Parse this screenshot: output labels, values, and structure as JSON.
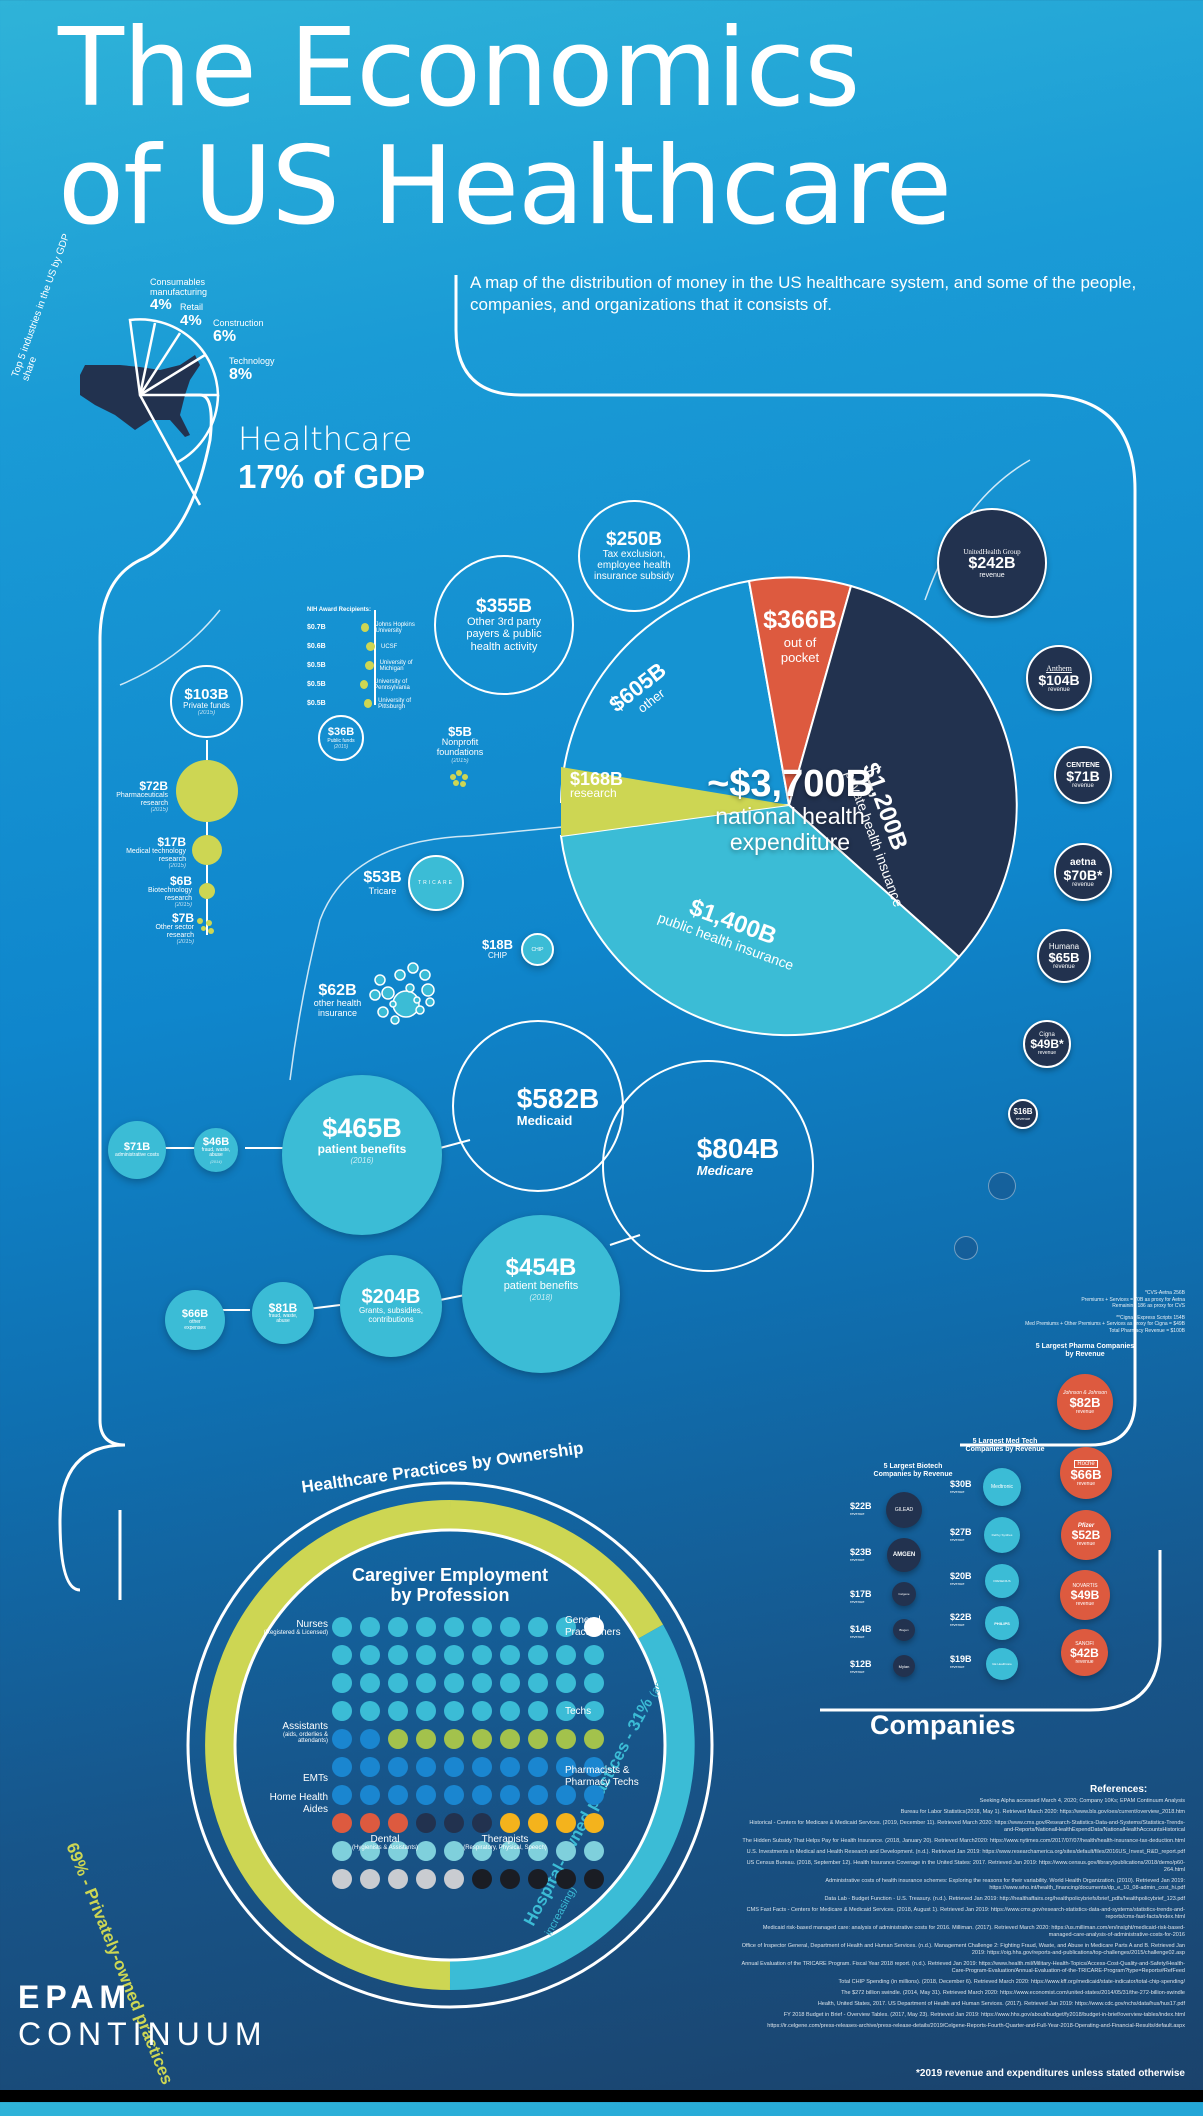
{
  "header": {
    "title_line1": "The Economics",
    "title_line2": "of US Healthcare",
    "subtitle": "A map of the distribution of money in the US healthcare system, and some of the people, companies, and organizations that it consists of."
  },
  "gdp": {
    "arc_label": "Top 5 industries in the US by GDP share",
    "industries": [
      {
        "name": "Consumables manufacturing",
        "pct": "4%"
      },
      {
        "name": "Retail",
        "pct": "4%"
      },
      {
        "name": "Construction",
        "pct": "6%"
      },
      {
        "name": "Technology",
        "pct": "8%"
      }
    ],
    "healthcare_label": "Healthcare",
    "healthcare_pct": "17% of GDP"
  },
  "colors": {
    "navy": "#22324f",
    "orange": "#dd5a3f",
    "lime": "#cdd653",
    "teal": "#3bbcd6",
    "blue_bg": "#0f86cc"
  },
  "chart_data": {
    "type": "pie",
    "title": "~$3,700B national health expenditure",
    "unit": "USD billions",
    "categories": [
      "private health insurance",
      "public health insurance",
      "research",
      "other",
      "out of pocket"
    ],
    "values": [
      1200,
      1400,
      168,
      605,
      366
    ],
    "labels": [
      "$1,200B",
      "$1,400B",
      "$168B",
      "$605B",
      "$366B"
    ],
    "slice_colors": [
      "#22324f",
      "#3bbcd6",
      "#cdd653",
      "#1593d2",
      "#dd5a3f"
    ]
  },
  "pie": {
    "total": "~$3,700B",
    "total_label_1": "national health",
    "total_label_2": "expenditure",
    "out_of_pocket": {
      "value": "$366B",
      "label": "out of pocket"
    },
    "private": {
      "value": "$1,200B",
      "label": "private health insuance"
    },
    "public": {
      "value": "$1,400B",
      "label": "public health insurance"
    },
    "research": {
      "value": "$168B",
      "label": "research"
    },
    "other": {
      "value": "$605B",
      "label": "other"
    }
  },
  "other_bubbles": {
    "tax": {
      "value": "$250B",
      "label": "Tax exclusion, employee health insurance subsidy"
    },
    "third_party": {
      "value": "$355B",
      "label": "Other 3rd party payers & public health activity"
    }
  },
  "research": {
    "private": {
      "value": "$103B",
      "label": "Private funds",
      "year": "(2015)"
    },
    "items": [
      {
        "value": "$72B",
        "label": "Pharmaceuticals research",
        "year": "(2015)"
      },
      {
        "value": "$17B",
        "label": "Medical technology research",
        "year": "(2015)"
      },
      {
        "value": "$6B",
        "label": "Biotechnology research",
        "year": "(2015)"
      },
      {
        "value": "$7B",
        "label": "Other sector research",
        "year": "(2015)"
      }
    ],
    "nih_title": "NIH Award Recipients:",
    "nih": [
      {
        "value": "$0.7B",
        "name": "Johns Hopkins University"
      },
      {
        "value": "$0.6B",
        "name": "UCSF"
      },
      {
        "value": "$0.5B",
        "name": "University of Michigan"
      },
      {
        "value": "$0.5B",
        "name": "University of Pennsylvania"
      },
      {
        "value": "$0.5B",
        "name": "University of Pittsburgh"
      }
    ],
    "public": {
      "value": "$36B",
      "label": "Public funds",
      "year": "(2015)"
    },
    "nonprofit": {
      "value": "$5B",
      "label": "Nonprofit foundations",
      "year": "(2015)"
    }
  },
  "public_programs": {
    "tricare": {
      "value": "$53B",
      "label": "Tricare",
      "logo": "TRICARE"
    },
    "chip": {
      "value": "$18B",
      "label": "CHIP",
      "logo": "CHIP"
    },
    "other": {
      "value": "$62B",
      "label": "other health insurance"
    },
    "medicaid": {
      "value": "$582B",
      "label": "Medicaid"
    },
    "medicare": {
      "value": "$804B",
      "label": "Medicare"
    },
    "medicaid_breakdown": [
      {
        "value": "$71B",
        "label": "administrative costs"
      },
      {
        "value": "$46B",
        "label": "fraud, waste, abuse",
        "year": "(2014)"
      },
      {
        "value": "$465B",
        "label": "patient benefits",
        "year": "(2016)"
      }
    ],
    "medicare_breakdown": [
      {
        "value": "$66B",
        "label": "other expenses"
      },
      {
        "value": "$81B",
        "label": "fraud, waste, abuse"
      },
      {
        "value": "$204B",
        "label": "Grants, subsidies, contributions"
      },
      {
        "value": "$454B",
        "label": "patient benefits",
        "year": "(2018)"
      }
    ]
  },
  "insurers": [
    {
      "name": "UnitedHealth Group",
      "value": "$242B",
      "sub": "revenue"
    },
    {
      "name": "Anthem",
      "value": "$104B",
      "sub": "revenue"
    },
    {
      "name": "CENTENE",
      "value": "$71B",
      "sub": "revenue"
    },
    {
      "name": "aetna",
      "value": "$70B*",
      "sub": "revenue"
    },
    {
      "name": "Humana",
      "value": "$65B",
      "sub": "revenue"
    },
    {
      "name": "Cigna",
      "value": "$49B*",
      "sub": "revenue"
    },
    {
      "name": "",
      "value": "$16B",
      "sub": "revenue"
    }
  ],
  "footnotes": {
    "cvs": [
      "*CVS-Aetna 256B",
      "Premiums + Services = 70B as proxy for Aetna",
      "Remaining 186 as proxy for CVS"
    ],
    "cigna": [
      "**Cigna / Express Scripts 154B",
      "Med Premiums + Other Premiums + Services as proxy for Cigna = $49B",
      "Total Pharmacy Revenue = $100B"
    ]
  },
  "companies": {
    "title": "Companies",
    "pharma_title": "5 Largest Pharma Companies by Revenue",
    "pharma": [
      {
        "name": "Johnson & Johnson",
        "value": "$82B",
        "sub": "revenue"
      },
      {
        "name": "Roche",
        "value": "$66B",
        "sub": "revenue"
      },
      {
        "name": "Pfizer",
        "value": "$52B",
        "sub": "revenue"
      },
      {
        "name": "NOVARTIS",
        "value": "$49B",
        "sub": "revenue"
      },
      {
        "name": "SANOFI",
        "value": "$42B",
        "sub": "revenue"
      }
    ],
    "medtech_title": "5 Largest Med Tech Companies by Revenue",
    "medtech": [
      {
        "name": "Medtronic",
        "value": "$30B",
        "sub": "revenue"
      },
      {
        "name": "DePuy Synthes",
        "value": "$27B",
        "sub": "revenue"
      },
      {
        "name": "FRESENIUS",
        "value": "$20B",
        "sub": "revenue"
      },
      {
        "name": "PHILIPS",
        "value": "$22B",
        "sub": "revenue"
      },
      {
        "name": "GE Healthcare",
        "value": "$19B",
        "sub": "revenue"
      }
    ],
    "biotech_title": "5 Largest Biotech Companies by Revenue",
    "biotech": [
      {
        "name": "GILEAD",
        "value": "$22B",
        "sub": "revenue"
      },
      {
        "name": "AMGEN",
        "value": "$23B",
        "sub": "revenue"
      },
      {
        "name": "Celgene",
        "value": "$17B",
        "sub": "revenue"
      },
      {
        "name": "Biogen",
        "value": "$14B",
        "sub": "revenue"
      },
      {
        "name": "Mylan",
        "value": "$12B",
        "sub": "revenue"
      }
    ]
  },
  "practices": {
    "ring_title": "Healthcare Practices by Ownership",
    "private": "69% - Privately-owned practices",
    "hospital": "Hospital-owned practices - 31%",
    "hospital_note": "(and increasing)",
    "grid_title_1": "Caregiver Employment",
    "grid_title_2": "by Profession",
    "labels": {
      "nurses": "Nurses",
      "nurses_sub": "(Registered & Licensed)",
      "gp": "General Practitioners",
      "techs": "Techs",
      "assistants": "Assistants",
      "assistants_sub": "(aids, orderlies & attendants)",
      "emts": "EMTs",
      "pharma": "Pharmacists & Pharmacy Techs",
      "hha": "Home Health Aides",
      "dental": "Dental",
      "dental_sub": "(Hygienists & Assistants)",
      "therapists": "Therapists",
      "therapists_sub": "(Respiratory, Physical, Speech)"
    },
    "grid": [
      [
        "n",
        "n",
        "n",
        "n",
        "n",
        "n",
        "n",
        "n",
        "n",
        "g"
      ],
      [
        "n",
        "n",
        "n",
        "n",
        "n",
        "n",
        "n",
        "n",
        "n",
        "n"
      ],
      [
        "n",
        "n",
        "n",
        "n",
        "n",
        "n",
        "n",
        "n",
        "n",
        "n"
      ],
      [
        "n",
        "n",
        "n",
        "n",
        "n",
        "n",
        "n",
        "n",
        "n",
        "n"
      ],
      [
        "a",
        "a",
        "t",
        "t",
        "t",
        "t",
        "t",
        "t",
        "t",
        "t"
      ],
      [
        "a",
        "a",
        "a",
        "a",
        "a",
        "a",
        "a",
        "a",
        "a",
        "a"
      ],
      [
        "a",
        "a",
        "a",
        "a",
        "a",
        "a",
        "a",
        "a",
        "a",
        "a"
      ],
      [
        "e",
        "e",
        "e",
        "x",
        "x",
        "x",
        "p",
        "p",
        "p",
        "p"
      ],
      [
        "h",
        "h",
        "h",
        "h",
        "h",
        "h",
        "h",
        "h",
        "h",
        "h"
      ],
      [
        "d",
        "d",
        "d",
        "d",
        "d",
        "r",
        "r",
        "r",
        "r",
        "r"
      ]
    ],
    "grid_colors": {
      "n": "#3bbcd6",
      "g": "#ffffff",
      "a": "#1a86d0",
      "t": "#a3c24c",
      "e": "#dd5a3f",
      "x": "#22324f",
      "p": "#f4b31c",
      "h": "#7fd0dc",
      "d": "#c9ccd1",
      "r": "#1a1d24"
    }
  },
  "references": {
    "title": "References:",
    "items": [
      "Seeking Alpha accessed March 4, 2020; Company 10Ks; EPAM Continuum Analysis",
      "Bureau for Labor Statistics(2018, May 1). Retrieved March 2020: https://www.bls.gov/oes/current/overview_2018.htm",
      "Historical - Centers for Medicare & Medicaid Services. (2019, December 11). Retrieved March 2020: https://www.cms.gov/Research-Statistics-Data-and-Systems/Statistics-Trends-and-Reports/NationalHealthExpendData/NationalHealthAccountsHistorical",
      "The Hidden Subsidy That Helps Pay for Health Insurance. (2018, January 20). Retrieved March2020: https://www.nytimes.com/2017/07/07/health/health-insurance-tax-deduction.html",
      "U.S. Investments in Medical and Health Research and Development. (n.d.). Retrieved Jan 2019: https://www.researchamerica.org/sites/default/files/2016US_Invest_R&D_report.pdf",
      "US Census Bureau. (2018, September 12). Health Insurance Coverage in the United States: 2017. Retrieved Jan 2019: https://www.census.gov/library/publications/2018/demo/p60-264.html",
      "Administrative costs of health insurance schemes: Exploring the reasons for their variability. World Health Organization. (2010). Retrieved Jan 2019: https://www.who.int/health_financing/documents/dp_e_10_08-admin_cost_hi.pdf",
      "Data Lab - Budget Function - U.S. Treasury. (n.d.). Retrieved Jan 2019: http://healthaffairs.org/healthpolicybriefs/brief_pdfs/healthpolicybrief_123.pdf",
      "CMS Fast Facts - Centers for Medicare & Medicaid Services. (2018, August 1). Retrieved Jan 2019: https://www.cms.gov/research-statistics-data-and-systems/statistics-trends-and-reports/cms-fast-facts/index.html",
      "Medicaid risk-based managed care: analysis of administrative costs for 2016. Milliman. (2017). Retrieved March 2020: https://us.milliman.com/en/insight/medicaid-risk-based-managed-care-analysis-of-administrative-costs-for-2016",
      "Office of Inspector General, Department of Health and Human Services. (n.d.). Management Challenge 2: Fighting Fraud, Waste, and Abuse in Medicare Parts A and B. Retrieved Jan 2019: https://oig.hhs.gov/reports-and-publications/top-challenges/2015/challenge02.asp",
      "Annual Evaluation of the TRICARE Program. Fiscal Year 2018 report. (n.d.). Retrieved Jan 2019: https://www.health.mil/Military-Health-Topics/Access-Cost-Quality-and-Safety/Health-Care-Program-Evaluation/Annual-Evaluation-of-the-TRICARE-Program?type=Reports#RefFeed",
      "Total CHIP Spending (in millions). (2018, December 6). Retrieved March 2020: https://www.kff.org/medicaid/state-indicator/total-chip-spending/",
      "The $272 billion swindle. (2014, May 31). Retrieved March 2020: https://www.economist.com/united-states/2014/05/31/the-272-billion-swindle",
      "Health, United States, 2017. US Department of Health and Human Services. (2017). Retrieved Jan 2019: https://www.cdc.gov/nchs/data/hus/hus17.pdf",
      "FY 2018 Budget in Brief - Overview Tables. (2017, May 23). Retrieved Jan 2019: https://www.hhs.gov/about/budget/fy2018/budget-in-brief/overview-tables/index.html",
      "https://ir.celgene.com/press-releases-archive/press-release-details/2019/Celgene-Reports-Fourth-Quarter-and-Full-Year-2018-Operating-and-Financial-Results/default.aspx"
    ],
    "footnote": "*2019 revenue and expenditures unless stated otherwise"
  },
  "brand": {
    "line1": "EPAM",
    "line2": "CONTINUUM"
  }
}
